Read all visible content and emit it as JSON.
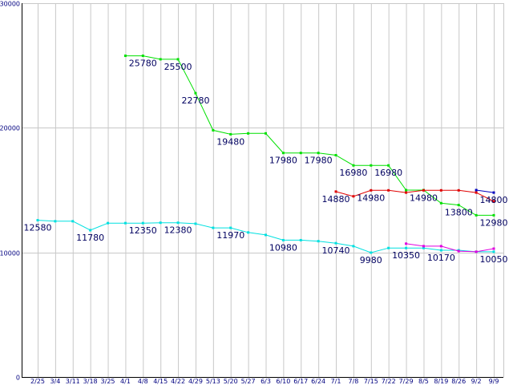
{
  "chart_data": {
    "type": "line",
    "ylim": [
      0,
      30000
    ],
    "yticks": [
      "0",
      "10000",
      "20000",
      "30000"
    ],
    "grid": true,
    "categories": [
      "2/25",
      "3/4",
      "3/11",
      "3/18",
      "3/25",
      "4/1",
      "4/8",
      "4/15",
      "4/22",
      "4/29",
      "5/13",
      "5/20",
      "5/27",
      "6/3",
      "6/10",
      "6/17",
      "6/24",
      "7/1",
      "7/8",
      "7/15",
      "7/22",
      "7/29",
      "8/5",
      "8/19",
      "8/26",
      "9/2",
      "9/9"
    ],
    "series": [
      {
        "color": "#00e000",
        "values": [
          null,
          null,
          null,
          null,
          null,
          25780,
          25780,
          25500,
          25500,
          22780,
          19800,
          19480,
          19550,
          19550,
          17980,
          17980,
          17980,
          17800,
          16980,
          16980,
          16980,
          15000,
          15000,
          13950,
          13800,
          12980,
          12980
        ]
      },
      {
        "color": "#00e0e0",
        "values": [
          12580,
          12500,
          12500,
          11780,
          12350,
          12350,
          12350,
          12380,
          12380,
          12300,
          11970,
          11970,
          11600,
          11400,
          10980,
          10980,
          10900,
          10740,
          10500,
          9980,
          10350,
          10350,
          10350,
          10170,
          10170,
          10050,
          10050
        ]
      },
      {
        "color": "#e00000",
        "values": [
          null,
          null,
          null,
          null,
          null,
          null,
          null,
          null,
          null,
          null,
          null,
          null,
          null,
          null,
          null,
          null,
          null,
          14880,
          14500,
          14980,
          14980,
          14800,
          14980,
          14980,
          14980,
          14800,
          14100
        ]
      },
      {
        "color": "#e000e0",
        "values": [
          null,
          null,
          null,
          null,
          null,
          null,
          null,
          null,
          null,
          null,
          null,
          null,
          null,
          null,
          null,
          null,
          null,
          null,
          null,
          null,
          null,
          10700,
          10500,
          10500,
          10100,
          10050,
          10300
        ]
      },
      {
        "color": "#0000c0",
        "values": [
          null,
          null,
          null,
          null,
          null,
          null,
          null,
          null,
          null,
          null,
          null,
          null,
          null,
          null,
          null,
          null,
          null,
          null,
          null,
          null,
          null,
          null,
          null,
          null,
          null,
          15000,
          14800
        ]
      }
    ],
    "labels": [
      {
        "text": "25780",
        "x": 6,
        "y": 25780
      },
      {
        "text": "25500",
        "x": 8,
        "y": 25500
      },
      {
        "text": "22780",
        "x": 9,
        "y": 22780
      },
      {
        "text": "19480",
        "x": 11,
        "y": 19480
      },
      {
        "text": "17980",
        "x": 14,
        "y": 17980
      },
      {
        "text": "17980",
        "x": 16,
        "y": 17980
      },
      {
        "text": "16980",
        "x": 18,
        "y": 16980
      },
      {
        "text": "16980",
        "x": 20,
        "y": 16980
      },
      {
        "text": "14880",
        "x": 17,
        "y": 14880
      },
      {
        "text": "14980",
        "x": 19,
        "y": 14980
      },
      {
        "text": "14980",
        "x": 22,
        "y": 14980
      },
      {
        "text": "13800",
        "x": 24,
        "y": 13800
      },
      {
        "text": "14800",
        "x": 26,
        "y": 14800
      },
      {
        "text": "12980",
        "x": 26,
        "y": 12980
      },
      {
        "text": "12580",
        "x": 0,
        "y": 12580
      },
      {
        "text": "11780",
        "x": 3,
        "y": 11780
      },
      {
        "text": "12350",
        "x": 6,
        "y": 12350
      },
      {
        "text": "12380",
        "x": 8,
        "y": 12380
      },
      {
        "text": "11970",
        "x": 11,
        "y": 11970
      },
      {
        "text": "10980",
        "x": 14,
        "y": 10980
      },
      {
        "text": "10740",
        "x": 17,
        "y": 10740
      },
      {
        "text": "9980",
        "x": 19,
        "y": 9980
      },
      {
        "text": "10350",
        "x": 21,
        "y": 10350
      },
      {
        "text": "10170",
        "x": 23,
        "y": 10170
      },
      {
        "text": "10050",
        "x": 26,
        "y": 10050
      }
    ]
  }
}
